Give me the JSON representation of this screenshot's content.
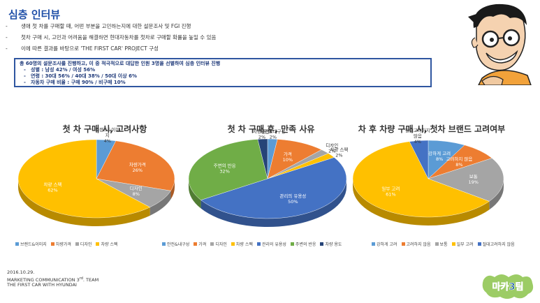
{
  "page": {
    "title": "심층 인터뷰",
    "bullets": [
      "생애 첫 차를 구매할 때, 어떤 부분을 고민하는지에 대한 설문조사 및 FGI 진행",
      "첫차 구매 시, 고민과 어려움을 해결하면 현대자동차를 첫차로 구매할 확률을 높일 수 있음",
      "이에 따른 결과를 바탕으로 'THE FIRST CAR' PROJECT 구성"
    ],
    "bullet_dash": "-",
    "summary": {
      "line1": "총 60명의 설문조사를 진행하고, 이 중 적극적으로 대답한 인원 3명을 선별하여 심층 인터뷰 진행",
      "items": [
        "성별 : 남성 42% / 여성 56%",
        "연령 : 30대 56% / 40대 38% / 50대 이상 6%",
        "자동차 구매 비율 : 구매 90% / 비구매 10%"
      ]
    },
    "footer": {
      "date": "2016.10.29.",
      "team_prefix": "MARKETING COMMUNICATION 3",
      "team_sup": "rd",
      "team_suffix": ". TEAM",
      "project": "THE FIRST CAR WITH HYUNDAI"
    },
    "badge_text": "마카3팀"
  },
  "chart_data": [
    {
      "type": "pie",
      "title": "첫 차 구매 시, 고려사항",
      "categories": [
        "브랜드&이미지",
        "차량가격",
        "디자인",
        "차량 스펙"
      ],
      "values": [
        4,
        26,
        8,
        62
      ],
      "slice_labels": [
        [
          "브랜드&이미",
          "지",
          "4%"
        ],
        [
          "차량가격",
          "26%"
        ],
        [
          "디자인",
          "8%"
        ],
        [
          "차량 스펙",
          "62%"
        ]
      ],
      "colors": [
        "#5b9bd5",
        "#ed7d31",
        "#a5a5a5",
        "#ffc000"
      ],
      "legend": [
        "브랜드&이미지",
        "차량가격",
        "디자인",
        "차량 스펙"
      ]
    },
    {
      "type": "pie",
      "title": "첫 차 구매 후, 만족 사유",
      "categories": [
        "안전&내구성",
        "가격",
        "디자인",
        "차량 스펙",
        "관리의 유용성",
        "주변의 반응",
        "차량 용도"
      ],
      "values": [
        2,
        10,
        2,
        2,
        50,
        32,
        2
      ],
      "slice_labels": [
        [
          "안전&내구성",
          "2%"
        ],
        [
          "가격",
          "10%"
        ],
        [
          "디자인",
          "2%"
        ],
        [
          "차량 스펙",
          "2%"
        ],
        [
          "관리의 유용성",
          "50%"
        ],
        [
          "주변의 반응",
          "32%"
        ],
        [
          "차량 용도",
          "2%"
        ]
      ],
      "colors": [
        "#5b9bd5",
        "#ed7d31",
        "#a5a5a5",
        "#ffc000",
        "#4472c4",
        "#70ad47",
        "#264478"
      ],
      "legend": [
        "안전&내구성",
        "가격",
        "디자인",
        "차량 스펙",
        "관리의 유용성",
        "주변의 반응",
        "차량 용도"
      ]
    },
    {
      "type": "pie",
      "title": "차 후 차량 구매 시, 첫차 브랜드 고려여부",
      "categories": [
        "강하게 고려",
        "고려하지 않음",
        "보통",
        "일부 고려",
        "절대고려하지 않음"
      ],
      "values": [
        8,
        8,
        19,
        61,
        4
      ],
      "slice_labels": [
        [
          "강하게 고려",
          "8%"
        ],
        [
          "고려하지 않음",
          "8%"
        ],
        [
          "보통",
          "19%"
        ],
        [
          "일부 고려",
          "61%"
        ],
        [
          "절대고려하지",
          "않음",
          "4%"
        ]
      ],
      "colors": [
        "#5b9bd5",
        "#ed7d31",
        "#a5a5a5",
        "#ffc000",
        "#4472c4"
      ],
      "legend": [
        "강하게 고려",
        "고려하지 않음",
        "보통",
        "일부 고려",
        "절대고려하지 않음"
      ]
    }
  ]
}
